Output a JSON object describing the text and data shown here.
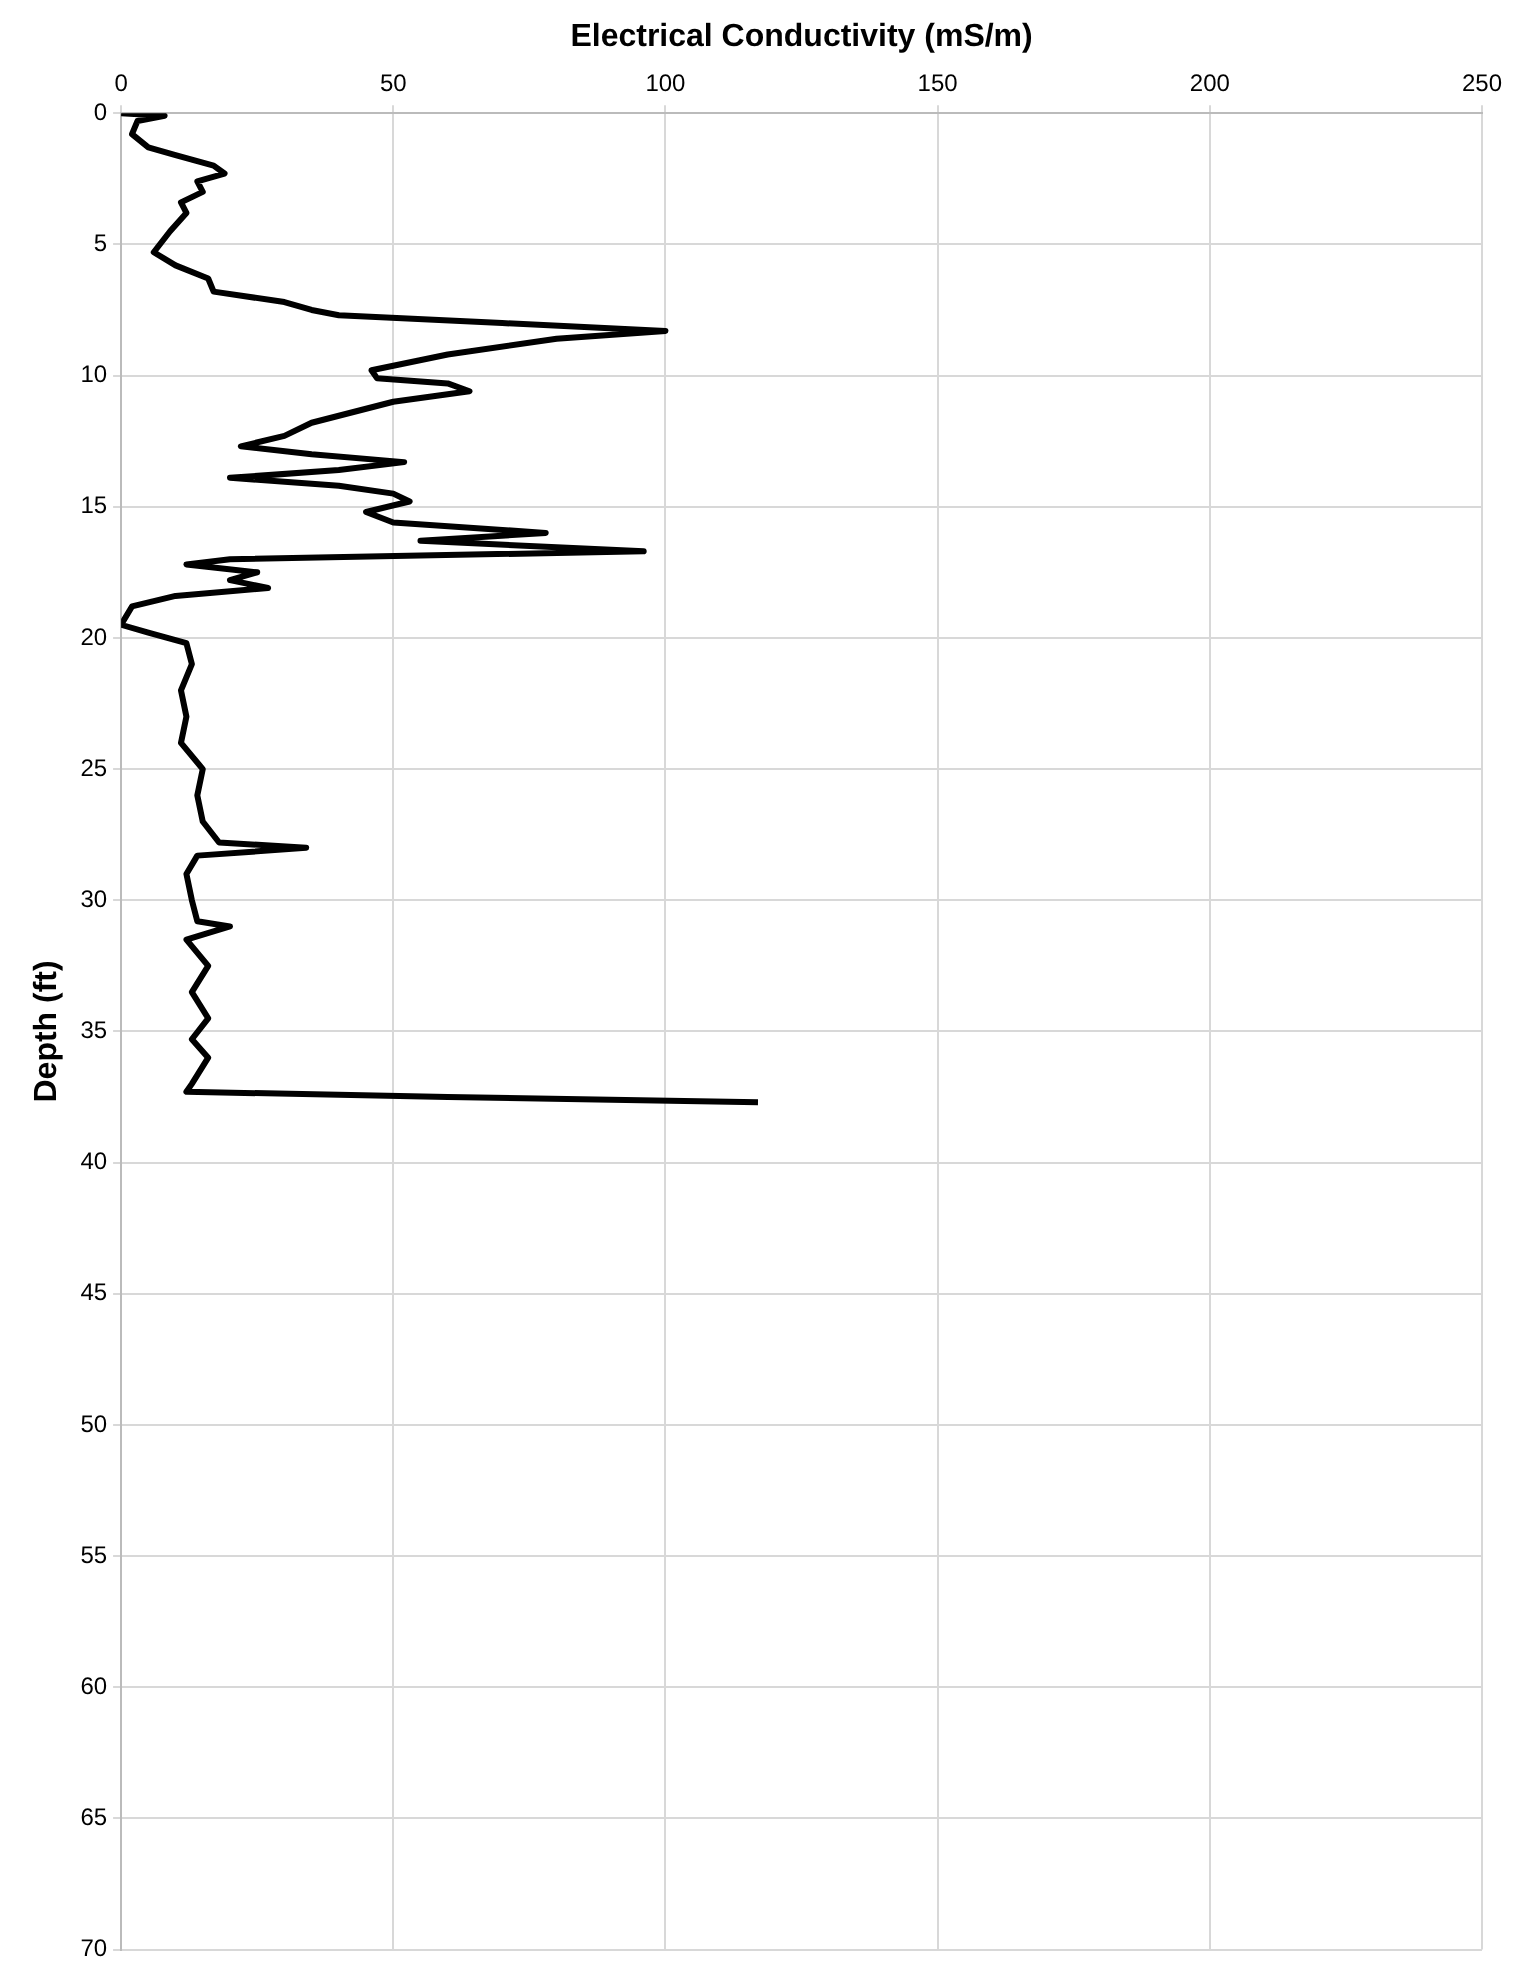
{
  "chart_data": {
    "type": "line",
    "xlabel": "Electrical Conductivity (mS/m)",
    "ylabel": "Depth (ft)",
    "xlim": [
      0,
      250
    ],
    "xticks": [
      0,
      50,
      100,
      150,
      200,
      250
    ],
    "ylim": [
      70,
      0
    ],
    "yticks": [
      0,
      5,
      10,
      15,
      20,
      25,
      30,
      35,
      40,
      45,
      50,
      55,
      60,
      65,
      70
    ],
    "grid": true,
    "marker": "none",
    "line_style": "solid",
    "series": [
      {
        "color": "#000000",
        "x": [
          0,
          8,
          3,
          2,
          5,
          10,
          17,
          19,
          14,
          15,
          11,
          12,
          9,
          6,
          10,
          16,
          17,
          30,
          35,
          40,
          70,
          100,
          80,
          60,
          46,
          47,
          60,
          64,
          50,
          35,
          30,
          22,
          35,
          52,
          40,
          20,
          40,
          50,
          53,
          45,
          50,
          78,
          55,
          96,
          20,
          12,
          25,
          20,
          27,
          10,
          2,
          0,
          5,
          12,
          13,
          11,
          12,
          11,
          15,
          14,
          15,
          18,
          34,
          14,
          12,
          13,
          14,
          20,
          12,
          16,
          13,
          16,
          13,
          16,
          13,
          12,
          60,
          117
        ],
        "values": [
          0,
          0.1,
          0.3,
          0.8,
          1.3,
          1.6,
          2,
          2.3,
          2.6,
          3,
          3.4,
          3.8,
          4.5,
          5.3,
          5.8,
          6.3,
          6.8,
          7.2,
          7.5,
          7.7,
          8,
          8.3,
          8.6,
          9.2,
          9.8,
          10.1,
          10.3,
          10.6,
          11,
          11.8,
          12.3,
          12.7,
          13,
          13.3,
          13.6,
          13.9,
          14.2,
          14.5,
          14.8,
          15.2,
          15.6,
          16,
          16.3,
          16.7,
          17,
          17.2,
          17.5,
          17.8,
          18.1,
          18.4,
          18.8,
          19.5,
          19.8,
          20.2,
          21,
          22,
          23,
          24,
          25,
          26,
          27,
          27.8,
          28,
          28.3,
          29,
          30,
          30.8,
          31,
          31.5,
          32.5,
          33.5,
          34.5,
          35.3,
          36,
          37,
          37.3,
          37.5,
          37.7
        ]
      }
    ]
  }
}
